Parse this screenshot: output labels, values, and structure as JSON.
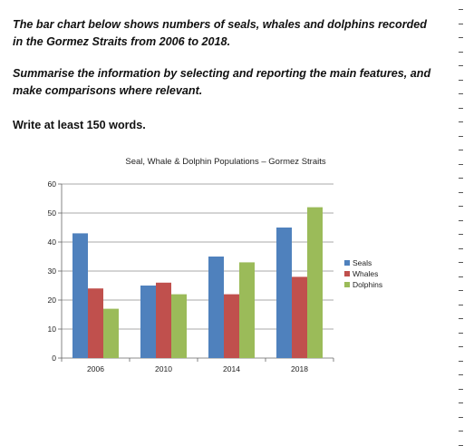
{
  "task": {
    "prompt_line_1": "The bar chart below shows numbers of seals, whales and dolphins recorded in the Gormez Straits from 2006 to 2018.",
    "prompt_line_2": "Summarise the information by selecting and reporting the main features, and make comparisons where relevant.",
    "instruction": "Write at least 150 words."
  },
  "chart_data": {
    "type": "bar",
    "title": "Seal, Whale & Dolphin Populations – Gormez Straits",
    "categories": [
      "2006",
      "2010",
      "2014",
      "2018"
    ],
    "series": [
      {
        "name": "Seals",
        "values": [
          43,
          25,
          35,
          45
        ],
        "color": "#4f81bd"
      },
      {
        "name": "Whales",
        "values": [
          24,
          26,
          22,
          28
        ],
        "color": "#c0504d"
      },
      {
        "name": "Dolphins",
        "values": [
          17,
          22,
          33,
          52
        ],
        "color": "#9bbb59"
      }
    ],
    "ylim": [
      0,
      60
    ],
    "yticks": [
      0,
      10,
      20,
      30,
      40,
      50,
      60
    ],
    "grid": true,
    "legend": "right",
    "xlabel": "",
    "ylabel": ""
  }
}
